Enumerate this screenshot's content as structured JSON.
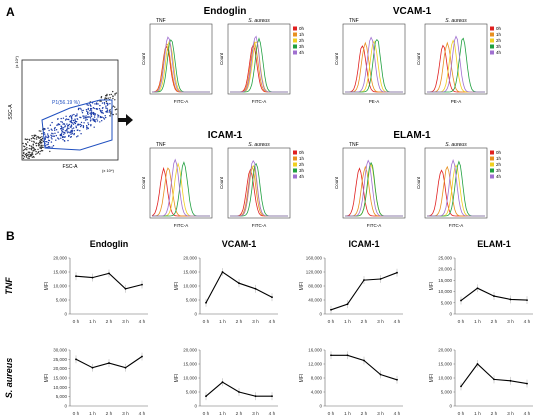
{
  "panels": {
    "a": "A",
    "b": "B"
  },
  "scatter": {
    "gate_label": "P1(56.19 %)",
    "x_axis": "FSC-A",
    "y_axis": "SSC-A",
    "x_exp": "(x 10⁴)",
    "y_exp": "(x 10⁴)"
  },
  "flow": {
    "colors": {
      "0h": "#e02020",
      "1h": "#e89020",
      "2h": "#f0d020",
      "3h": "#20a040",
      "4h": "#a070d0"
    },
    "legend": [
      "0h",
      "1h",
      "2h",
      "3h",
      "4h"
    ],
    "groups": [
      {
        "title": "Endoglin",
        "stim": [
          "TNF",
          "S. aureus"
        ],
        "xlabel": "FITC-A",
        "ylabel": "Count"
      },
      {
        "title": "VCAM-1",
        "stim": [
          "TNF",
          "S. aureus"
        ],
        "xlabel": "PE-A",
        "ylabel": "Count"
      },
      {
        "title": "ICAM-1",
        "stim": [
          "TNF",
          "S. aureus"
        ],
        "xlabel": "FITC-A",
        "ylabel": "Count"
      },
      {
        "title": "ELAM-1",
        "stim": [
          "TNF",
          "S. aureus"
        ],
        "xlabel": "FITC-A",
        "ylabel": "Count"
      }
    ]
  },
  "chart_data": [
    {
      "type": "line",
      "row": "TNF",
      "title": "Endoglin",
      "x": [
        "0 h",
        "1 h",
        "2 h",
        "3 h",
        "4 h"
      ],
      "values": [
        13500,
        13000,
        14500,
        9000,
        10500
      ],
      "yticks": [
        0,
        5000,
        10000,
        15000,
        20000
      ],
      "ylim": [
        0,
        20000
      ],
      "ylabel": "MFI"
    },
    {
      "type": "line",
      "row": "TNF",
      "title": "VCAM-1",
      "x": [
        "0 h",
        "1 h",
        "2 h",
        "3 h",
        "4 h"
      ],
      "values": [
        4000,
        15000,
        11000,
        9000,
        6000
      ],
      "yticks": [
        0,
        5000,
        10000,
        15000,
        20000
      ],
      "ylim": [
        0,
        20000
      ],
      "ylabel": "MFI"
    },
    {
      "type": "line",
      "row": "TNF",
      "title": "ICAM-1",
      "x": [
        "0 h",
        "1 h",
        "2 h",
        "3 h",
        "4 h"
      ],
      "values": [
        12000,
        28000,
        97000,
        100000,
        118000
      ],
      "yticks": [
        0,
        40000,
        80000,
        120000,
        160000
      ],
      "ylim": [
        0,
        160000
      ],
      "ylabel": "MFI"
    },
    {
      "type": "line",
      "row": "TNF",
      "title": "ELAM-1",
      "x": [
        "0 h",
        "1 h",
        "2 h",
        "3 h",
        "4 h"
      ],
      "values": [
        6000,
        11500,
        8000,
        6500,
        6200
      ],
      "yticks": [
        0,
        5000,
        10000,
        15000,
        20000,
        25000
      ],
      "ylim": [
        0,
        25000
      ],
      "ylabel": "MFI"
    },
    {
      "type": "line",
      "row": "S. aureus",
      "title": "Endoglin",
      "x": [
        "0 h",
        "1 h",
        "2 h",
        "3 h",
        "4 h"
      ],
      "values": [
        25000,
        20500,
        23000,
        20500,
        26500
      ],
      "yticks": [
        0,
        5000,
        10000,
        15000,
        20000,
        25000,
        30000
      ],
      "ylim": [
        0,
        30000
      ],
      "ylabel": "MFI"
    },
    {
      "type": "line",
      "row": "S. aureus",
      "title": "VCAM-1",
      "x": [
        "0 h",
        "1 h",
        "2 h",
        "3 h",
        "4 h"
      ],
      "values": [
        3500,
        8500,
        5000,
        3500,
        3500
      ],
      "yticks": [
        0,
        5000,
        10000,
        15000,
        20000
      ],
      "ylim": [
        0,
        20000
      ],
      "ylabel": "MFI"
    },
    {
      "type": "line",
      "row": "S. aureus",
      "title": "ICAM-1",
      "x": [
        "0 h",
        "1 h",
        "2 h",
        "3 h",
        "4 h"
      ],
      "values": [
        14500,
        14500,
        13000,
        9000,
        7500
      ],
      "yticks": [
        0,
        4000,
        8000,
        12000,
        16000
      ],
      "ylim": [
        0,
        16000
      ],
      "ylabel": "MFI"
    },
    {
      "type": "line",
      "row": "S. aureus",
      "title": "ELAM-1",
      "x": [
        "0 h",
        "1 h",
        "2 h",
        "3 h",
        "4 h"
      ],
      "values": [
        7000,
        15000,
        9500,
        9000,
        8000
      ],
      "yticks": [
        0,
        5000,
        10000,
        15000,
        20000
      ],
      "ylim": [
        0,
        20000
      ],
      "ylabel": "MFI"
    }
  ]
}
